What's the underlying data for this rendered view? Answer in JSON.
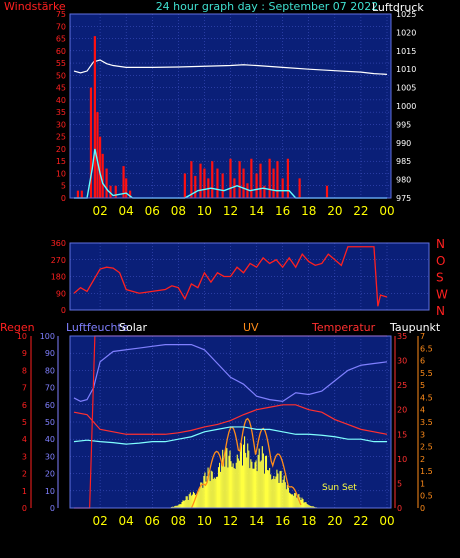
{
  "header": {
    "left_label": "Windstärke",
    "title": "24 hour graph day : September 07 2022",
    "right_label": "Luftdruck"
  },
  "panel3_labels": {
    "regen": "Regen",
    "luftfeuchte": "Luftfeuchte",
    "solar": "Solar",
    "uv": "UV",
    "temperatur": "Temperatur",
    "taupunkt": "Taupunkt",
    "sun_set": "Sun Set"
  },
  "colors": {
    "background": "#000000",
    "plot_bg": "#0a1f78",
    "grid": "#4a5bd0",
    "wind_axis": "#ff2020",
    "pressure_axis": "#ffffff",
    "time_ticks": "#ffff00",
    "header_title": "#40e0d0",
    "wind_gust": "#ff1010",
    "wind_avg": "#ffffff",
    "wind_avg2": "#60ffff",
    "pressure_line": "#ffffff",
    "direction": "#ff2020",
    "humidity": "#8080ff",
    "temperature": "#ff3030",
    "dewpoint": "#80ffff",
    "solar": "#ffff40",
    "uv": "#ff8c1a",
    "rain": "#ff2020"
  },
  "chart_data": [
    {
      "type": "line",
      "title": "24 hour graph day : September 07 2022",
      "ylabel": "Windstärke",
      "y2label": "Luftdruck",
      "x_ticks": [
        "02",
        "04",
        "06",
        "08",
        "10",
        "12",
        "14",
        "16",
        "18",
        "20",
        "22",
        "00"
      ],
      "ylim": [
        0,
        75
      ],
      "y_ticks": [
        0,
        5,
        10,
        15,
        20,
        25,
        30,
        35,
        40,
        45,
        50,
        55,
        60,
        65,
        70,
        75
      ],
      "y2lim": [
        975,
        1025
      ],
      "y2_ticks": [
        975,
        980,
        985,
        990,
        995,
        1000,
        1005,
        1010,
        1015,
        1020,
        1025
      ],
      "grid": true,
      "series": [
        {
          "role": "pressure",
          "x": [
            0,
            0.5,
            1,
            1.5,
            2,
            2.5,
            3,
            4,
            5,
            6,
            8,
            10,
            12,
            13,
            14,
            16,
            18,
            20,
            22,
            23,
            24
          ],
          "values": [
            1009.5,
            1009,
            1009.5,
            1012,
            1012.5,
            1011.5,
            1011,
            1010.5,
            1010.5,
            1010.5,
            1010.6,
            1010.8,
            1011,
            1011.2,
            1011,
            1010.5,
            1010,
            1009.6,
            1009.2,
            1008.8,
            1008.6
          ]
        },
        {
          "role": "gust",
          "x": [
            0.3,
            0.6,
            1.3,
            1.6,
            1.8,
            2.0,
            2.2,
            2.5,
            2.8,
            3.2,
            3.8,
            4.0,
            4.3,
            8.5,
            9.0,
            9.3,
            9.7,
            10.0,
            10.3,
            10.6,
            11.0,
            11.4,
            12.0,
            12.3,
            12.7,
            13.0,
            13.3,
            13.6,
            14.0,
            14.3,
            14.6,
            15.0,
            15.3,
            15.6,
            16.0,
            16.4,
            17.3,
            19.4
          ],
          "values": [
            3,
            3,
            45,
            66,
            35,
            25,
            18,
            12,
            5,
            5,
            13,
            8,
            3,
            10,
            15,
            9,
            14,
            12,
            8,
            15,
            12,
            10,
            16,
            8,
            15,
            12,
            6,
            16,
            10,
            14,
            5,
            16,
            12,
            15,
            8,
            16,
            8,
            5
          ]
        },
        {
          "role": "average",
          "x": [
            0,
            1,
            1.4,
            1.6,
            1.8,
            2.0,
            2.2,
            2.6,
            3,
            4,
            4.5,
            8.5,
            9.5,
            10.5,
            11.5,
            12.5,
            13.5,
            14.5,
            15.5,
            16.5,
            17,
            24
          ],
          "values": [
            0,
            0,
            12,
            20,
            15,
            10,
            6,
            3,
            1,
            2,
            0,
            0,
            3,
            4,
            3,
            5,
            3,
            4,
            3,
            3,
            0,
            0
          ]
        }
      ]
    },
    {
      "type": "line",
      "y_ticks": [
        0,
        90,
        180,
        270,
        360
      ],
      "ylim": [
        0,
        360
      ],
      "y2_ticks": [
        "N",
        "W",
        "S",
        "O",
        "N"
      ],
      "x_ticks": [
        "02",
        "04",
        "06",
        "08",
        "10",
        "12",
        "14",
        "16",
        "18",
        "20",
        "22",
        "00"
      ],
      "grid": true,
      "series": [
        {
          "role": "direction",
          "x": [
            0,
            0.5,
            1,
            1.5,
            2,
            2.5,
            3,
            3.5,
            4,
            5,
            6,
            7,
            7.5,
            8,
            8.5,
            9,
            9.5,
            10,
            10.5,
            11,
            11.5,
            12,
            12.5,
            13,
            13.5,
            14,
            14.5,
            15,
            15.5,
            16,
            16.5,
            17,
            17.5,
            18,
            18.5,
            19,
            19.5,
            20,
            20.5,
            21,
            22,
            23,
            23.3,
            23.5,
            24
          ],
          "values": [
            90,
            120,
            100,
            160,
            220,
            230,
            225,
            200,
            110,
            90,
            100,
            110,
            130,
            120,
            60,
            140,
            120,
            200,
            150,
            200,
            180,
            180,
            230,
            200,
            250,
            230,
            280,
            250,
            270,
            230,
            280,
            230,
            300,
            260,
            240,
            250,
            300,
            270,
            240,
            340,
            340,
            340,
            20,
            80,
            70
          ]
        }
      ]
    },
    {
      "type": "line",
      "x_ticks": [
        "02",
        "04",
        "06",
        "08",
        "10",
        "12",
        "14",
        "16",
        "18",
        "20",
        "22",
        "00"
      ],
      "regen_ticks": [
        0,
        1,
        2,
        3,
        4,
        5,
        6,
        7,
        8,
        9,
        10
      ],
      "humidity_ticks": [
        0,
        10,
        20,
        30,
        40,
        50,
        60,
        70,
        80,
        90,
        100
      ],
      "temp_ticks": [
        0,
        5,
        10,
        15,
        20,
        25,
        30,
        35
      ],
      "uv_ticks": [
        0,
        0.5,
        1,
        1.5,
        2,
        2.5,
        3,
        3.5,
        4,
        4.5,
        5,
        5.5,
        6,
        6.5,
        7
      ],
      "grid": true,
      "series": [
        {
          "role": "humidity",
          "x": [
            0,
            0.5,
            1,
            1.5,
            2,
            3,
            4,
            5,
            6,
            7,
            8,
            9,
            10,
            11,
            12,
            13,
            14,
            15,
            16,
            17,
            18,
            19,
            20,
            21,
            22,
            23,
            24
          ],
          "values": [
            64,
            62,
            63,
            70,
            85,
            91,
            92,
            93,
            94,
            95,
            95,
            95,
            92,
            84,
            76,
            72,
            65,
            63,
            62,
            67,
            66,
            68,
            74,
            80,
            83,
            84,
            85
          ]
        },
        {
          "role": "temperature",
          "x": [
            0,
            1,
            2,
            3,
            4,
            5,
            6,
            7,
            8,
            9,
            10,
            11,
            12,
            13,
            14,
            15,
            16,
            17,
            18,
            19,
            20,
            21,
            22,
            23,
            24
          ],
          "values": [
            19.5,
            19,
            16,
            15.5,
            15,
            15,
            15,
            15,
            15.3,
            15.8,
            16.5,
            17,
            17.8,
            19,
            20,
            20.5,
            21,
            21,
            20,
            19.5,
            18,
            17,
            16,
            15.5,
            15
          ]
        },
        {
          "role": "dewpoint",
          "x": [
            0,
            1,
            2,
            3,
            4,
            5,
            6,
            7,
            8,
            9,
            10,
            11,
            12,
            13,
            14,
            15,
            16,
            17,
            18,
            19,
            20,
            21,
            22,
            23,
            24
          ],
          "values": [
            13.5,
            13.8,
            13.5,
            13.3,
            13,
            13.2,
            13.5,
            13.5,
            14,
            14.5,
            15.5,
            16,
            16.5,
            16.5,
            16,
            16,
            15.5,
            15,
            15,
            14.8,
            14.5,
            14,
            14,
            13.5,
            13.5
          ]
        },
        {
          "role": "rain",
          "x": [
            0,
            1.2,
            1.4,
            1.6,
            24
          ],
          "values": [
            0,
            0,
            5,
            10,
            10
          ]
        },
        {
          "role": "solar_uv_day_window",
          "x": [
            7,
            19
          ],
          "values": [
            0,
            0
          ]
        }
      ]
    }
  ]
}
